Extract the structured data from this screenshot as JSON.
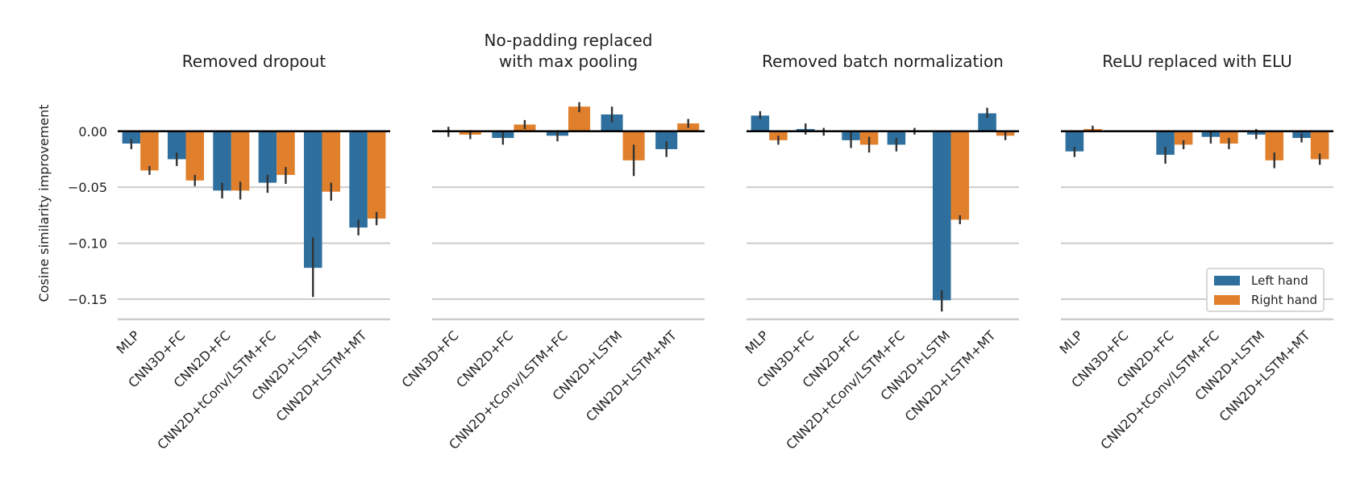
{
  "chart_data": {
    "type": "bar",
    "ylabel": "Cosine similarity improvement",
    "ylim": [
      -0.168,
      0.038
    ],
    "yticks": [
      0.0,
      -0.05,
      -0.1,
      -0.15
    ],
    "ytick_labels": [
      "0.00",
      "−0.05",
      "−0.10",
      "−0.15"
    ],
    "grid": "horizontal",
    "legend_position": "bottom-right",
    "legend": [
      {
        "name": "Left hand",
        "color": "#2e6f9e"
      },
      {
        "name": "Right hand",
        "color": "#e1802c"
      }
    ],
    "colors": {
      "left": "#2e6f9e",
      "right": "#e1802c",
      "errorbar": "#333333",
      "grid": "#cccccc",
      "zero_line": "#000000"
    },
    "panels": [
      {
        "title_lines": [
          "Removed dropout"
        ],
        "categories": [
          "MLP",
          "CNN3D+FC",
          "CNN2D+FC",
          "CNN2D+tConv/LSTM+FC",
          "CNN2D+LSTM",
          "CNN2D+LSTM+MT"
        ],
        "series": [
          {
            "name": "Left hand",
            "values": [
              -0.011,
              -0.025,
              -0.053,
              -0.046,
              -0.122,
              -0.086
            ],
            "err_low": [
              -0.016,
              -0.031,
              -0.06,
              -0.055,
              -0.148,
              -0.093
            ],
            "err_high": [
              -0.007,
              -0.019,
              -0.046,
              -0.039,
              -0.095,
              -0.079
            ]
          },
          {
            "name": "Right hand",
            "values": [
              -0.035,
              -0.044,
              -0.053,
              -0.039,
              -0.054,
              -0.078
            ],
            "err_low": [
              -0.039,
              -0.049,
              -0.061,
              -0.047,
              -0.062,
              -0.084
            ],
            "err_high": [
              -0.031,
              -0.039,
              -0.045,
              -0.032,
              -0.046,
              -0.072
            ]
          }
        ]
      },
      {
        "title_lines": [
          "No-padding replaced",
          "with max pooling"
        ],
        "categories": [
          "CNN3D+FC",
          "CNN2D+FC",
          "CNN2D+tConv/LSTM+FC",
          "CNN2D+LSTM",
          "CNN2D+LSTM+MT"
        ],
        "series": [
          {
            "name": "Left hand",
            "values": [
              0.0,
              -0.006,
              -0.004,
              0.015,
              -0.016
            ],
            "err_low": [
              -0.005,
              -0.012,
              -0.009,
              0.008,
              -0.023
            ],
            "err_high": [
              0.004,
              -0.001,
              0.001,
              0.022,
              -0.009
            ]
          },
          {
            "name": "Right hand",
            "values": [
              -0.003,
              0.006,
              0.022,
              -0.026,
              0.007
            ],
            "err_low": [
              -0.007,
              0.002,
              0.017,
              -0.04,
              0.003
            ],
            "err_high": [
              0.001,
              0.01,
              0.026,
              -0.012,
              0.011
            ]
          }
        ]
      },
      {
        "title_lines": [
          "Removed batch normalization"
        ],
        "categories": [
          "MLP",
          "CNN3D+FC",
          "CNN2D+FC",
          "CNN2D+tConv/LSTM+FC",
          "CNN2D+LSTM",
          "CNN2D+LSTM+MT"
        ],
        "series": [
          {
            "name": "Left hand",
            "values": [
              0.014,
              0.002,
              -0.008,
              -0.012,
              -0.151,
              0.016
            ],
            "err_low": [
              0.011,
              -0.003,
              -0.015,
              -0.018,
              -0.161,
              0.012
            ],
            "err_high": [
              0.018,
              0.007,
              -0.001,
              -0.006,
              -0.142,
              0.021
            ]
          },
          {
            "name": "Right hand",
            "values": [
              -0.008,
              0.0,
              -0.012,
              0.0,
              -0.079,
              -0.004
            ],
            "err_low": [
              -0.012,
              -0.004,
              -0.019,
              -0.003,
              -0.083,
              -0.008
            ],
            "err_high": [
              -0.004,
              0.003,
              -0.005,
              0.003,
              -0.075,
              -0.0
            ]
          }
        ]
      },
      {
        "title_lines": [
          "ReLU replaced with ELU"
        ],
        "categories": [
          "MLP",
          "CNN3D+FC",
          "CNN2D+FC",
          "CNN2D+tConv/LSTM+FC",
          "CNN2D+LSTM",
          "CNN2D+LSTM+MT"
        ],
        "series": [
          {
            "name": "Left hand",
            "values": [
              -0.018,
              0.0,
              -0.021,
              -0.005,
              -0.003,
              -0.006
            ],
            "err_low": [
              -0.023,
              0.0,
              -0.029,
              -0.011,
              -0.007,
              -0.01
            ],
            "err_high": [
              -0.014,
              0.0,
              -0.014,
              0.0,
              0.002,
              -0.002
            ]
          },
          {
            "name": "Right hand",
            "values": [
              0.002,
              0.0,
              -0.012,
              -0.011,
              -0.026,
              -0.025
            ],
            "err_low": [
              -0.001,
              0.0,
              -0.016,
              -0.016,
              -0.033,
              -0.03
            ],
            "err_high": [
              0.005,
              0.0,
              -0.008,
              -0.006,
              -0.019,
              -0.02
            ]
          }
        ]
      }
    ]
  }
}
